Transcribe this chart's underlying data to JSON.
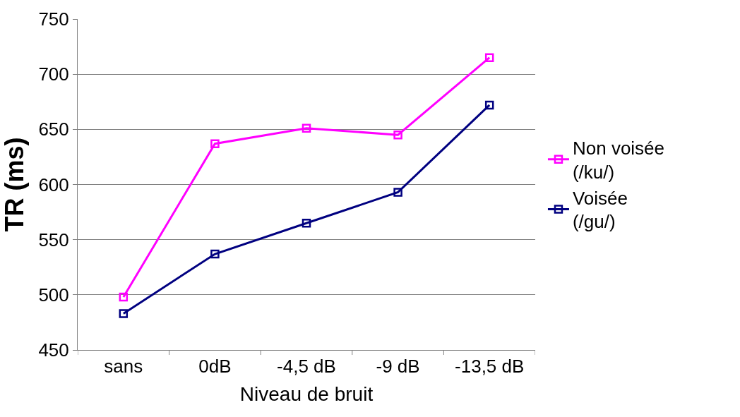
{
  "chart_data": {
    "type": "line",
    "xlabel": "Niveau de bruit",
    "ylabel": "TR (ms)",
    "categories": [
      "sans",
      "0dB",
      "-4,5 dB",
      "-9 dB",
      "-13,5 dB"
    ],
    "series": [
      {
        "name": "Non voisée\n(/ku/)",
        "color": "#ff00ff",
        "values": [
          498,
          637,
          651,
          645,
          715
        ]
      },
      {
        "name": "Voisée\n(/gu/)",
        "color": "#000080",
        "values": [
          483,
          537,
          565,
          593,
          672
        ]
      }
    ],
    "ylim": [
      450,
      750
    ],
    "yticks": [
      450,
      500,
      550,
      600,
      650,
      700,
      750
    ],
    "grid": "y",
    "legend": "right",
    "marker": "square",
    "line_style": "solid"
  }
}
